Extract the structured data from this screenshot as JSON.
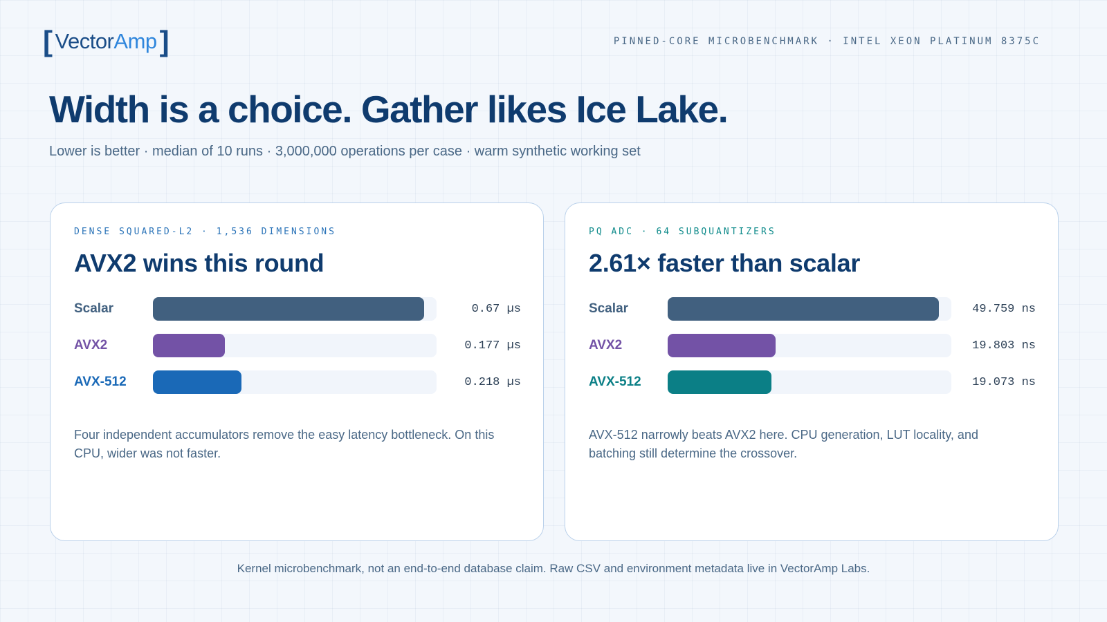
{
  "brand": {
    "bracket_open": "[",
    "name_part1": "Vector",
    "name_part2": "Amp",
    "bracket_close": "]"
  },
  "header_meta": "PINNED-CORE MICROBENCHMARK · INTEL XEON PLATINUM 8375C",
  "headline": "Width is a choice. Gather likes Ice Lake.",
  "subtitle": "Lower is better · median of 10 runs · 3,000,000 operations per case · warm synthetic working set",
  "colors": {
    "scalar": "#41607f",
    "avx2": "#7352a6",
    "avx512_dense": "#1a69b7",
    "avx512_pq": "#0b7f86",
    "eyebrow_dense": "#2a73b8",
    "eyebrow_pq": "#0d8a8a"
  },
  "chart_data": [
    {
      "type": "bar",
      "orientation": "horizontal",
      "eyebrow": "DENSE SQUARED-L2 · 1,536 DIMENSIONS",
      "title": "AVX2 wins this round",
      "categories": [
        "Scalar",
        "AVX2",
        "AVX-512"
      ],
      "values": [
        0.67,
        0.177,
        0.218
      ],
      "value_labels": [
        "0.67 µs",
        "0.177 µs",
        "0.218 µs"
      ],
      "unit": "µs",
      "xlim": [
        0,
        0.7
      ],
      "note": "Four independent accumulators remove the easy latency bottleneck. On this CPU, wider was not faster."
    },
    {
      "type": "bar",
      "orientation": "horizontal",
      "eyebrow": "PQ ADC · 64 SUBQUANTIZERS",
      "title": "2.61× faster than scalar",
      "categories": [
        "Scalar",
        "AVX2",
        "AVX-512"
      ],
      "values": [
        49.759,
        19.803,
        19.073
      ],
      "value_labels": [
        "49.759 ns",
        "19.803 ns",
        "19.073 ns"
      ],
      "unit": "ns",
      "xlim": [
        0,
        52
      ],
      "note": "AVX-512 narrowly beats AVX2 here. CPU generation, LUT locality, and batching still determine the crossover."
    }
  ],
  "footer": "Kernel microbenchmark, not an end-to-end database claim. Raw CSV and environment metadata live in VectorAmp Labs."
}
